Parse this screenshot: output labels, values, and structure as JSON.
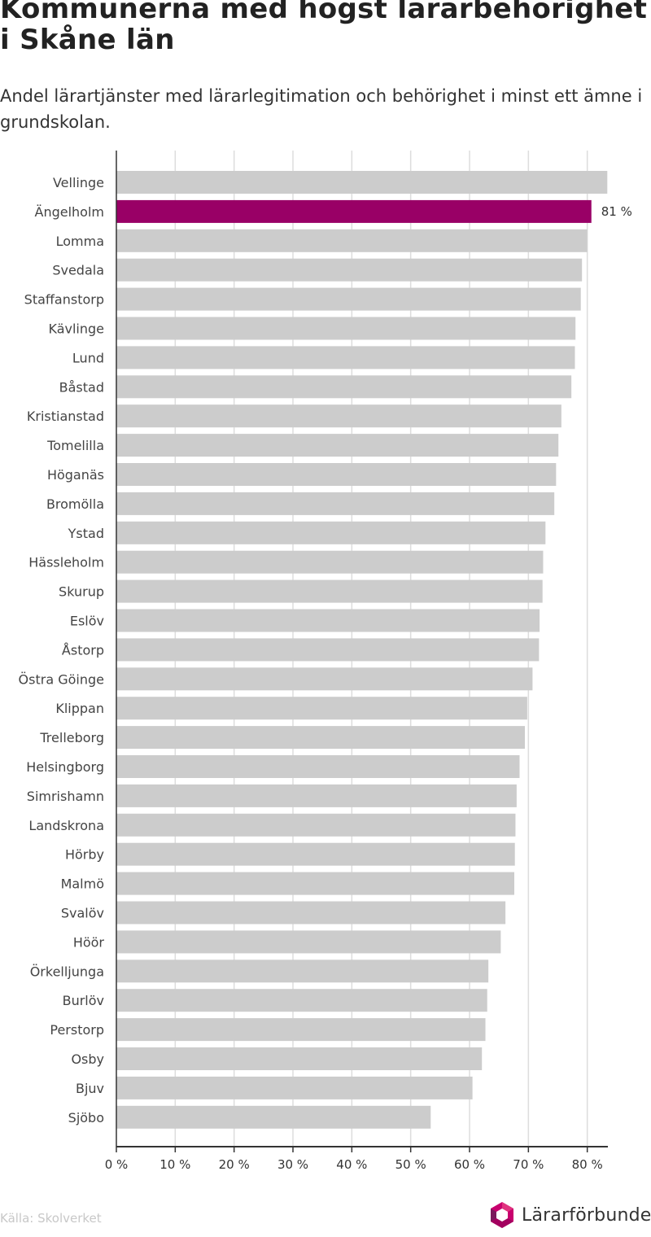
{
  "header": {
    "title": "Kommunerna med högst lärarbehörighet i Skåne län",
    "subtitle": "Andel lärartjänster med lärarlegitimation och behörighet i minst ett ämne i grundskolan."
  },
  "footer": {
    "source": "Källa: Skolverket",
    "brand": "Lärarförbundet"
  },
  "colors": {
    "bar": "#cccccc",
    "highlight": "#990066",
    "grid": "#dddddd",
    "axis": "#333333"
  },
  "chart_data": {
    "type": "bar",
    "orientation": "horizontal",
    "title": "Kommunerna med högst lärarbehörighet i Skåne län",
    "subtitle": "Andel lärartjänster med lärarlegitimation och behörighet i minst ett ämne i grundskolan.",
    "xlim": [
      0,
      83.5
    ],
    "x_ticks": [
      0,
      10,
      20,
      30,
      40,
      50,
      60,
      70,
      80
    ],
    "tick_suffix": " %",
    "grid": true,
    "highlight": "Ängelholm",
    "highlight_label": "81 %",
    "categories": [
      "Vellinge",
      "Ängelholm",
      "Lomma",
      "Svedala",
      "Staffanstorp",
      "Kävlinge",
      "Lund",
      "Båstad",
      "Kristianstad",
      "Tomelilla",
      "Höganäs",
      "Bromölla",
      "Ystad",
      "Hässleholm",
      "Skurup",
      "Eslöv",
      "Åstorp",
      "Östra Göinge",
      "Klippan",
      "Trelleborg",
      "Helsingborg",
      "Simrishamn",
      "Landskrona",
      "Hörby",
      "Malmö",
      "Svalöv",
      "Höör",
      "Örkelljunga",
      "Burlöv",
      "Perstorp",
      "Osby",
      "Bjuv",
      "Sjöbo"
    ],
    "values": [
      83.4,
      80.7,
      80.0,
      79.1,
      78.9,
      78.0,
      77.9,
      77.3,
      75.6,
      75.1,
      74.7,
      74.4,
      72.9,
      72.5,
      72.4,
      71.9,
      71.8,
      70.7,
      69.8,
      69.4,
      68.5,
      68.0,
      67.8,
      67.7,
      67.6,
      66.1,
      65.3,
      63.2,
      63.0,
      62.7,
      62.1,
      60.5,
      53.4
    ]
  }
}
